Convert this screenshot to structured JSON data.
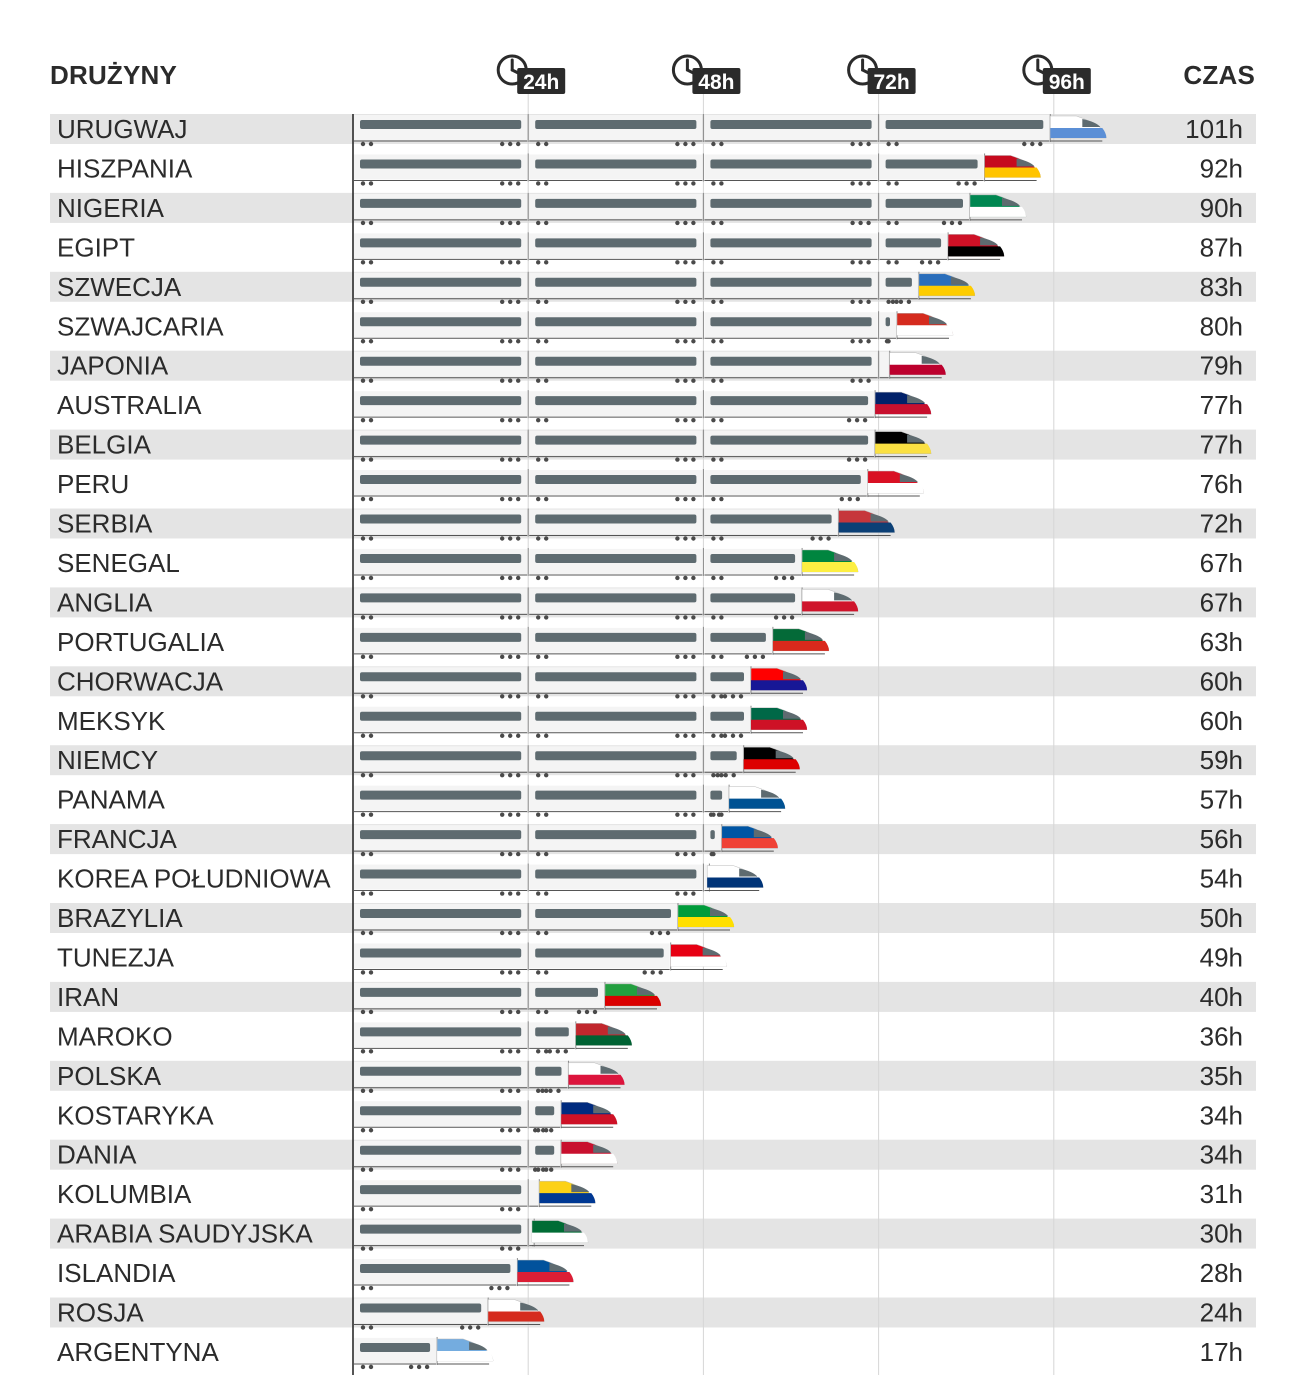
{
  "headers": {
    "teams": "DRUŻYNY",
    "time": "CZAS"
  },
  "colors": {
    "stripe": "#e4e4e4",
    "window_band": "#5e6b70",
    "car_body": "#f4f4f4",
    "grid": "#d6d6d6",
    "axis": "#2b2b2b",
    "label": "#2b2b2b"
  },
  "chart_data": {
    "type": "bar",
    "title": "",
    "xlabel": "",
    "ylabel": "",
    "xlim": [
      0,
      101
    ],
    "x_ticks": [
      {
        "value": 24,
        "label": "24h"
      },
      {
        "value": 48,
        "label": "48h"
      },
      {
        "value": 72,
        "label": "72h"
      },
      {
        "value": 96,
        "label": "96h"
      }
    ],
    "tick_icon": "clock-icon",
    "bar_style": "train",
    "categories": [
      "URUGWAJ",
      "HISZPANIA",
      "NIGERIA",
      "EGIPT",
      "SZWECJA",
      "SZWAJCARIA",
      "JAPONIA",
      "AUSTRALIA",
      "BELGIA",
      "PERU",
      "SERBIA",
      "SENEGAL",
      "ANGLIA",
      "PORTUGALIA",
      "CHORWACJA",
      "MEKSYK",
      "NIEMCY",
      "PANAMA",
      "FRANCJA",
      "KOREA POŁUDNIOWA",
      "BRAZYLIA",
      "TUNEZJA",
      "IRAN",
      "MAROKO",
      "POLSKA",
      "KOSTARYKA",
      "DANIA",
      "KOLUMBIA",
      "ARABIA SAUDYJSKA",
      "ISLANDIA",
      "ROSJA",
      "ARGENTYNA"
    ],
    "values": [
      101,
      92,
      90,
      87,
      83,
      80,
      79,
      77,
      77,
      76,
      72,
      67,
      67,
      63,
      60,
      60,
      59,
      57,
      56,
      54,
      50,
      49,
      40,
      36,
      35,
      34,
      34,
      31,
      30,
      28,
      24,
      17
    ],
    "value_labels": [
      "101h",
      "92h",
      "90h",
      "87h",
      "83h",
      "80h",
      "79h",
      "77h",
      "77h",
      "76h",
      "72h",
      "67h",
      "67h",
      "63h",
      "60h",
      "60h",
      "59h",
      "57h",
      "56h",
      "54h",
      "50h",
      "49h",
      "40h",
      "36h",
      "35h",
      "34h",
      "34h",
      "31h",
      "30h",
      "28h",
      "24h",
      "17h"
    ],
    "flag_colors": [
      [
        "#ffffff",
        "#5b8fd6"
      ],
      [
        "#c60b1e",
        "#ffc400"
      ],
      [
        "#008751",
        "#ffffff"
      ],
      [
        "#ce1126",
        "#000000"
      ],
      [
        "#2a6ebb",
        "#fecc00"
      ],
      [
        "#d52b1e",
        "#ffffff"
      ],
      [
        "#ffffff",
        "#bc002d"
      ],
      [
        "#012169",
        "#c8102e"
      ],
      [
        "#000000",
        "#fae042"
      ],
      [
        "#d91023",
        "#ffffff"
      ],
      [
        "#c6363c",
        "#0c4076"
      ],
      [
        "#00853f",
        "#fdef42"
      ],
      [
        "#ffffff",
        "#cf142b"
      ],
      [
        "#046a38",
        "#da291c"
      ],
      [
        "#ff0000",
        "#171796"
      ],
      [
        "#006847",
        "#ce1126"
      ],
      [
        "#000000",
        "#dd0000"
      ],
      [
        "#ffffff",
        "#005293"
      ],
      [
        "#0055a4",
        "#ef4135"
      ],
      [
        "#ffffff",
        "#003478"
      ],
      [
        "#009c3b",
        "#ffdf00"
      ],
      [
        "#e70013",
        "#ffffff"
      ],
      [
        "#239f40",
        "#da0000"
      ],
      [
        "#c1272d",
        "#006233"
      ],
      [
        "#ffffff",
        "#dc143c"
      ],
      [
        "#002b7f",
        "#ce1126"
      ],
      [
        "#c8102e",
        "#ffffff"
      ],
      [
        "#fcd116",
        "#003893"
      ],
      [
        "#006c35",
        "#ffffff"
      ],
      [
        "#02529c",
        "#dc1e35"
      ],
      [
        "#ffffff",
        "#d52b1e"
      ],
      [
        "#74acdf",
        "#ffffff"
      ]
    ]
  }
}
